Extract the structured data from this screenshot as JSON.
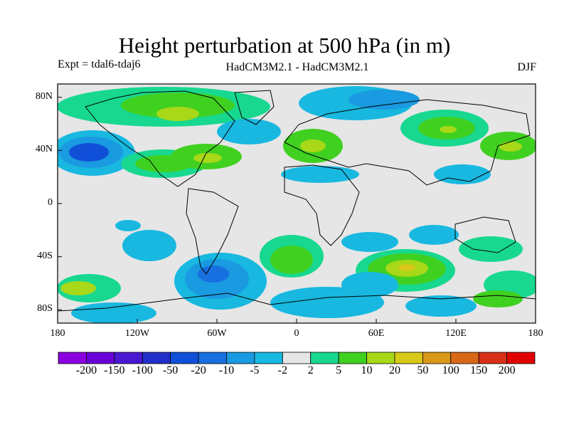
{
  "title": "Height perturbation at 500 hPa (in m)",
  "expt_label": "Expt = tdal6-tdaj6",
  "models_label": "HadCM3M2.1 - HadCM3M2.1",
  "season_label": "DJF",
  "lat_labels": [
    "80N",
    "40N",
    "0",
    "40S",
    "80S"
  ],
  "lat_values": [
    80,
    40,
    0,
    -40,
    -80
  ],
  "lon_labels": [
    "180",
    "120W",
    "60W",
    "0",
    "60E",
    "120E",
    "180"
  ],
  "lon_values": [
    -180,
    -120,
    -60,
    0,
    60,
    120,
    180
  ],
  "colorbar": {
    "labels": [
      "-200",
      "-150",
      "-100",
      "-50",
      "-20",
      "-10",
      "-5",
      "-2",
      "2",
      "5",
      "10",
      "20",
      "50",
      "100",
      "150",
      "200"
    ],
    "colors": [
      "#8a00e0",
      "#6a00d8",
      "#4a18d0",
      "#2030c8",
      "#1050d8",
      "#1870e0",
      "#1a9ae0",
      "#18b8e0",
      "#e6e6e6",
      "#18d890",
      "#40d020",
      "#a8d818",
      "#d8c818",
      "#d89818",
      "#d86818",
      "#d83018",
      "#e00000"
    ]
  },
  "map_colors": {
    "neutral": "#e6e6e6",
    "land_outline": "#000000"
  }
}
